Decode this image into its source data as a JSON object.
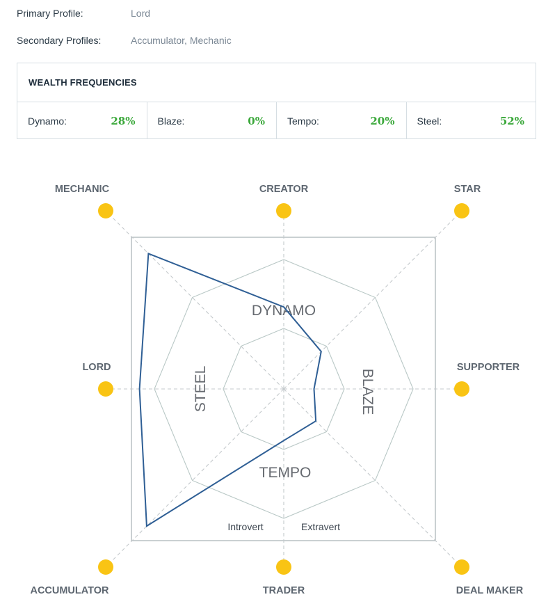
{
  "profiles": {
    "primary_label": "Primary Profile:",
    "primary_value": "Lord",
    "secondary_label": "Secondary Profiles:",
    "secondary_value": "Accumulator, Mechanic"
  },
  "wealth_frequencies": {
    "title": "WEALTH FREQUENCIES",
    "items": [
      {
        "label": "Dynamo:",
        "value": "28%"
      },
      {
        "label": "Blaze:",
        "value": "0%"
      },
      {
        "label": "Tempo:",
        "value": "20%"
      },
      {
        "label": "Steel:",
        "value": "52%"
      }
    ]
  },
  "chart_data": {
    "type": "radar",
    "axes": [
      "CREATOR",
      "STAR",
      "SUPPORTER",
      "DEAL MAKER",
      "TRADER",
      "ACCUMULATOR",
      "LORD",
      "MECHANIC"
    ],
    "values": [
      0.46,
      0.21,
      0.17,
      0.18,
      0.29,
      0.77,
      0.81,
      0.76
    ],
    "frequency_words": [
      "DYNAMO",
      "BLAZE",
      "TEMPO",
      "STEEL"
    ],
    "inner_labels": [
      "Introvert",
      "Extravert"
    ],
    "colors": {
      "line": "#2f5f95",
      "dots": "#f9c414",
      "grid": "#b9c8c6",
      "spokes": "#c4c9cc"
    }
  }
}
